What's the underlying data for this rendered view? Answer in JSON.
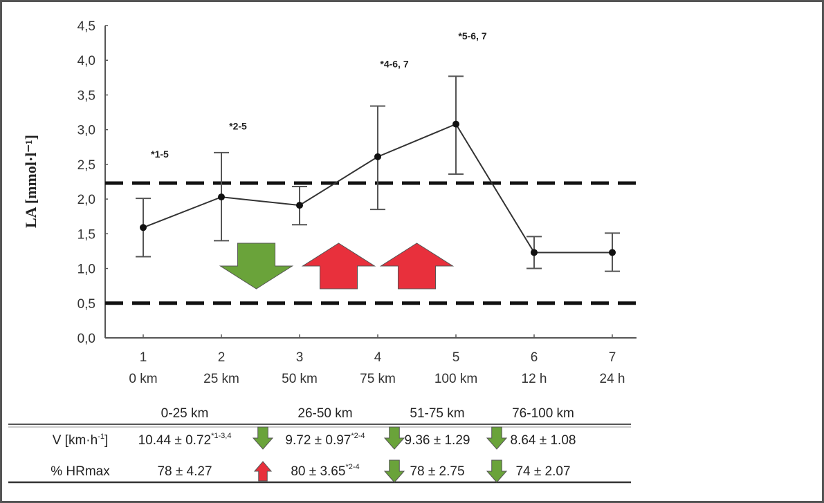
{
  "chart_data": {
    "type": "line",
    "title": "",
    "ylabel": "LA [mmol·l⁻¹]",
    "ylabel_main": "LA [mmol·l",
    "ylabel_sup": "-1",
    "ylabel_end": "]",
    "ylim": [
      0,
      4.5
    ],
    "yticks": [
      "0,0",
      "0,5",
      "1,0",
      "1,5",
      "2,0",
      "2,5",
      "3,0",
      "3,5",
      "4,0",
      "4,5"
    ],
    "ytick_values": [
      0,
      0.5,
      1.0,
      1.5,
      2.0,
      2.5,
      3.0,
      3.5,
      4.0,
      4.5
    ],
    "x": [
      1,
      2,
      3,
      4,
      5,
      6,
      7
    ],
    "xtick_top": [
      "1",
      "2",
      "3",
      "4",
      "5",
      "6",
      "7"
    ],
    "xtick_bottom": [
      "0 km",
      "25 km",
      "50 km",
      "75 km",
      "100 km",
      "12 h",
      "24 h"
    ],
    "series": [
      {
        "name": "LA",
        "values": [
          1.59,
          2.03,
          1.91,
          2.61,
          3.08,
          1.23,
          1.23
        ],
        "err_low": [
          1.17,
          1.4,
          1.63,
          1.85,
          2.36,
          1.0,
          0.96
        ],
        "err_high": [
          2.01,
          2.67,
          2.18,
          3.34,
          3.77,
          1.46,
          1.51
        ]
      }
    ],
    "reference_lines": [
      2.23,
      0.5
    ],
    "annotations": [
      {
        "x": 1,
        "text": "*1-5",
        "y": 2.6
      },
      {
        "x": 2,
        "text": "*2-5",
        "y": 3.0
      },
      {
        "x": 4,
        "text": "*4-6, 7",
        "y": 3.9
      },
      {
        "x": 5,
        "text": "*5-6, 7",
        "y": 4.3
      }
    ],
    "trend_arrows": [
      {
        "between": [
          2,
          3
        ],
        "direction": "down",
        "color": "#6aa33a"
      },
      {
        "between": [
          3,
          4
        ],
        "direction": "up",
        "color": "#e8303c"
      },
      {
        "between": [
          4,
          5
        ],
        "direction": "up",
        "color": "#e8303c"
      }
    ],
    "grid": false
  },
  "table": {
    "columns": [
      "0-25 km",
      "26-50 km",
      "51-75 km",
      "76-100 km"
    ],
    "rows": [
      {
        "label_main": "V [km·h",
        "label_sup": "-1",
        "label_end": "]",
        "cells": [
          {
            "value": "10.44 ± 0.72",
            "sup": "*1-3,4"
          },
          {
            "value": "9.72 ± 0.97",
            "sup": "*2-4"
          },
          {
            "value": "9.36 ± 1.29",
            "sup": ""
          },
          {
            "value": "8.64 ± 1.08",
            "sup": ""
          }
        ],
        "arrows": [
          "down",
          "down",
          "down"
        ]
      },
      {
        "label_main": "% HRmax",
        "label_sup": "",
        "label_end": "",
        "cells": [
          {
            "value": "78 ± 4.27",
            "sup": ""
          },
          {
            "value": "80 ± 3.65",
            "sup": "*2-4"
          },
          {
            "value": "78 ± 2.75",
            "sup": ""
          },
          {
            "value": "74 ± 2.07",
            "sup": ""
          }
        ],
        "arrows": [
          "up",
          "down",
          "down"
        ]
      }
    ]
  },
  "colors": {
    "up": "#e8303c",
    "down": "#6aa33a",
    "border": "#555555"
  }
}
